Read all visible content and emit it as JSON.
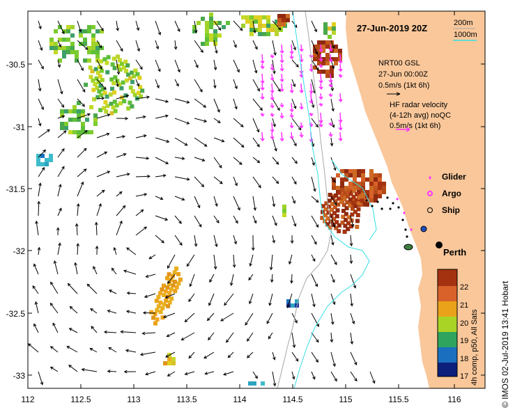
{
  "title": "27-Jun-2019 20Z",
  "depth_contours": {
    "label_200m": "200m",
    "label_1000m": "1000m"
  },
  "model": {
    "name": "NRT00 GSL",
    "time": "27-Jun 00:00Z",
    "scale": "0.5m/s (1kt 6h)"
  },
  "hf_radar": {
    "line1": "HF radar velocity",
    "line2": "(4-12h avg) noQC",
    "scale": "0.5m/s (1kt 6h)"
  },
  "legend": {
    "glider": "Glider",
    "argo": "Argo",
    "ship": "Ship"
  },
  "city": "Perth",
  "colorbar": {
    "label": "4h comp, p50, All Sats",
    "ticks": [
      "22",
      "21",
      "20",
      "19",
      "18",
      "17"
    ]
  },
  "credit": "© IMOS 02-Jul-2019 13:41 Hobart",
  "axes": {
    "x_ticks": [
      "112",
      "112.5",
      "113",
      "113.5",
      "114",
      "114.5",
      "115",
      "115.5",
      "116"
    ],
    "y_ticks": [
      "-30.5",
      "-31",
      "-31.5",
      "-32",
      "-32.5",
      "-33"
    ]
  },
  "colors": {
    "land": "#f9c79a",
    "contour_200m": "#a6a6a6",
    "contour_1000m": "#33e0e6",
    "glider": "#ff33ff",
    "argo": "#ff33ff",
    "hf_arrow": "#ff33ff"
  }
}
